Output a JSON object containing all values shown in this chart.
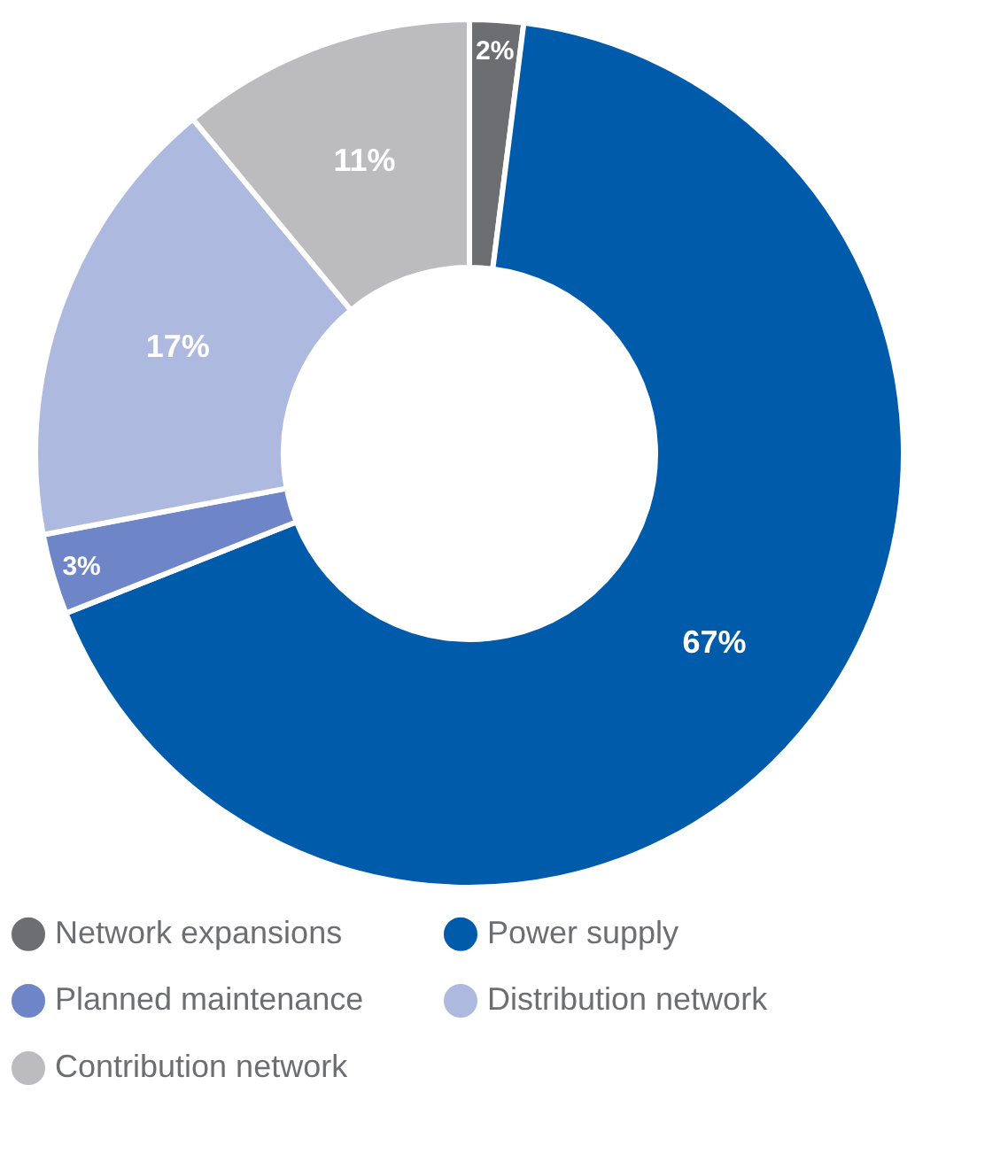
{
  "chart_data": {
    "type": "donut",
    "categories": [
      "Network expansions",
      "Power supply",
      "Planned maintenance",
      "Distribution network",
      "Contribution network"
    ],
    "values": [
      2,
      67,
      3,
      17,
      11
    ],
    "colors": [
      "#6d6e71",
      "#005baa",
      "#6e86c8",
      "#aeb9e0",
      "#bcbcbe"
    ],
    "value_labels": [
      "2%",
      "67%",
      "3%",
      "17%",
      "11%"
    ],
    "legend": "bottom"
  }
}
